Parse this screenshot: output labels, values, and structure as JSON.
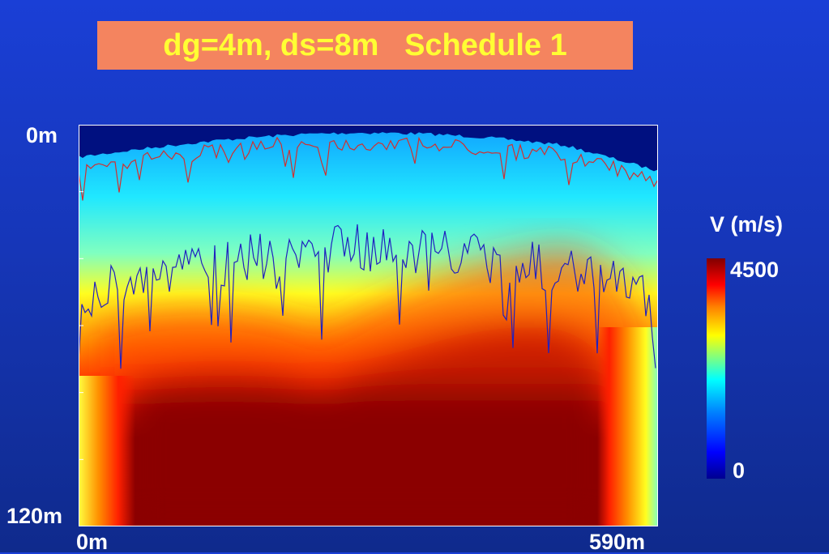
{
  "title": "dg=4m, ds=8m   Schedule 1",
  "chart_data": {
    "type": "heatmap",
    "title": "dg=4m, ds=8m   Schedule 1",
    "y_axis": {
      "top_label": "0m",
      "bottom_label": "120m",
      "range": [
        0,
        120
      ]
    },
    "x_axis": {
      "left_label": "0m",
      "right_label": "590m",
      "range": [
        0,
        590
      ]
    },
    "colorbar": {
      "label": "V (m/s)",
      "max_label": "4500",
      "min_label": "0",
      "range": [
        0,
        4500
      ]
    },
    "colormap": [
      "#00008f",
      "#0000ff",
      "#0080ff",
      "#00ffff",
      "#7fff80",
      "#ffff00",
      "#ff8000",
      "#ff0000",
      "#800000"
    ],
    "overlay_lines": [
      {
        "color": "#d03030",
        "approx_depth_m": 10
      },
      {
        "color": "#2020c0",
        "approx_depth_m": 55
      }
    ]
  },
  "colors": {
    "title_bg": "#f4845f",
    "title_text": "#ffff33",
    "label_text": "#ffffff"
  }
}
